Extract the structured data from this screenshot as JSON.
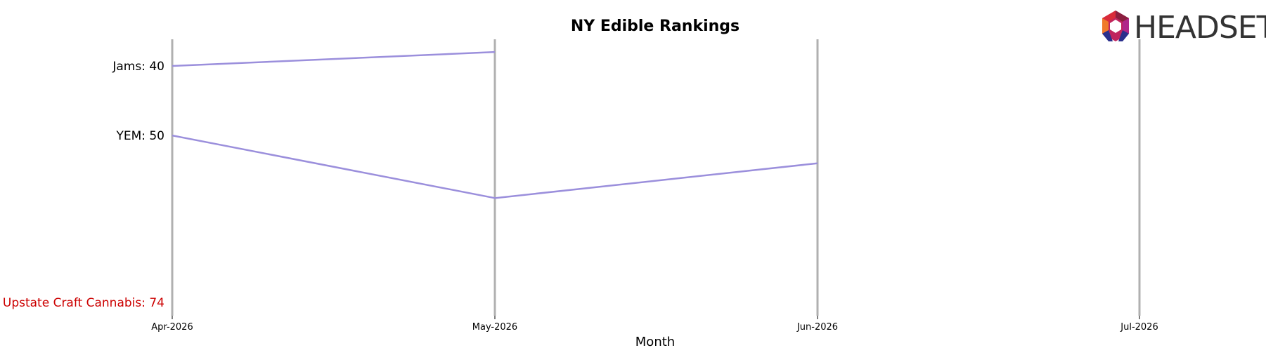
{
  "chart_data": {
    "type": "line",
    "title": "NY Edible Rankings",
    "xlabel": "Month",
    "ylabel": "",
    "categories": [
      "Apr-2026",
      "May-2026",
      "Jun-2026",
      "Jul-2026"
    ],
    "y_inverted": true,
    "ylim": [
      38,
      76
    ],
    "grid": false,
    "legend": "none",
    "series": [
      {
        "name": "Jams",
        "label": "Jams: 40",
        "label_color": "#000000",
        "color": "#9b8fdc",
        "values": [
          40,
          38,
          null,
          null
        ]
      },
      {
        "name": "YEM",
        "label": "YEM: 50",
        "label_color": "#000000",
        "color": "#9b8fdc",
        "values": [
          50,
          59,
          54,
          null
        ]
      },
      {
        "name": "Upstate Craft Cannabis",
        "label": "Upstate Craft Cannabis: 74",
        "label_color": "#cc0000",
        "color": "#9b8fdc",
        "values": [
          74,
          null,
          null,
          null
        ]
      }
    ]
  },
  "logo": {
    "text": "HEADSET",
    "icon": "headset-hexagon-icon"
  },
  "colors": {
    "month_line": "#b0b0b0",
    "series_line": "#9b8fdc"
  }
}
